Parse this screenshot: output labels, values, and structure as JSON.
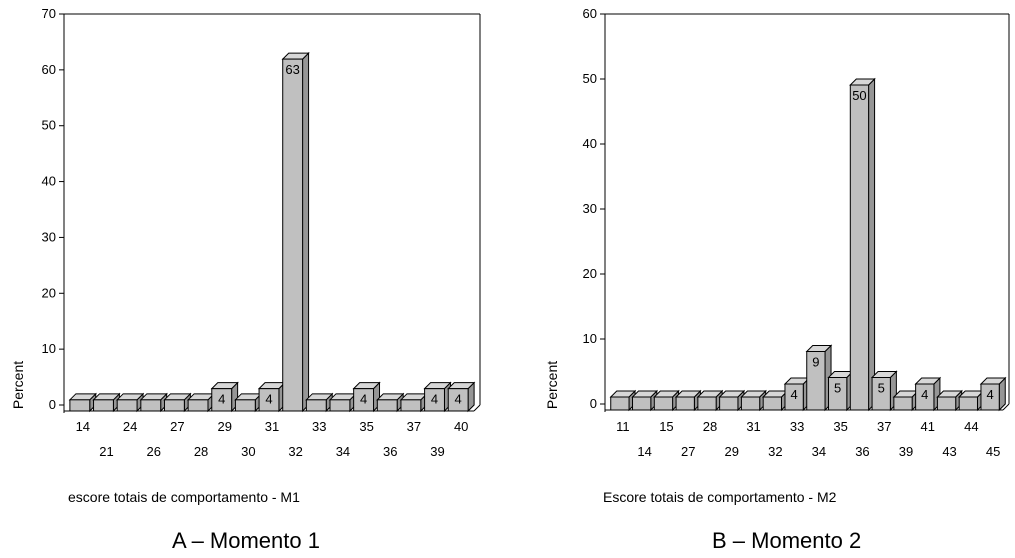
{
  "chart_data": [
    {
      "type": "bar",
      "style": "3d",
      "bar_color": "#c0c0c0",
      "caption": "A – Momento 1",
      "xlabel": "escore totais de comportamento - M1",
      "ylabel": "Percent",
      "ylim": [
        0,
        70
      ],
      "yticks": [
        0,
        10,
        20,
        30,
        40,
        50,
        60,
        70
      ],
      "grid": false,
      "categories": [
        "14",
        "21",
        "24",
        "26",
        "27",
        "28",
        "29",
        "30",
        "31",
        "32",
        "33",
        "34",
        "35",
        "36",
        "37",
        "39",
        "40"
      ],
      "values": [
        2,
        2,
        2,
        2,
        2,
        2,
        4,
        2,
        4,
        63,
        2,
        2,
        4,
        2,
        2,
        4,
        4
      ],
      "data_labels": [
        "",
        "",
        "",
        "",
        "",
        "",
        "4",
        "",
        "4",
        "63",
        "",
        "",
        "4",
        "",
        "",
        "4",
        "4"
      ]
    },
    {
      "type": "bar",
      "style": "3d",
      "bar_color": "#c0c0c0",
      "caption": "B – Momento 2",
      "xlabel": "Escore totais de comportamento - M2",
      "ylabel": "Percent",
      "ylim": [
        0,
        60
      ],
      "yticks": [
        0,
        10,
        20,
        30,
        40,
        50,
        60
      ],
      "grid": false,
      "categories": [
        "11",
        "14",
        "15",
        "27",
        "28",
        "29",
        "31",
        "32",
        "33",
        "34",
        "35",
        "36",
        "37",
        "39",
        "41",
        "43",
        "44",
        "45"
      ],
      "values": [
        2,
        2,
        2,
        2,
        2,
        2,
        2,
        2,
        4,
        9,
        5,
        50,
        5,
        2,
        4,
        2,
        2,
        4
      ],
      "data_labels": [
        "",
        "",
        "",
        "",
        "",
        "",
        "",
        "",
        "4",
        "9",
        "5",
        "50",
        "5",
        "",
        "4",
        "",
        "",
        "4"
      ]
    }
  ]
}
